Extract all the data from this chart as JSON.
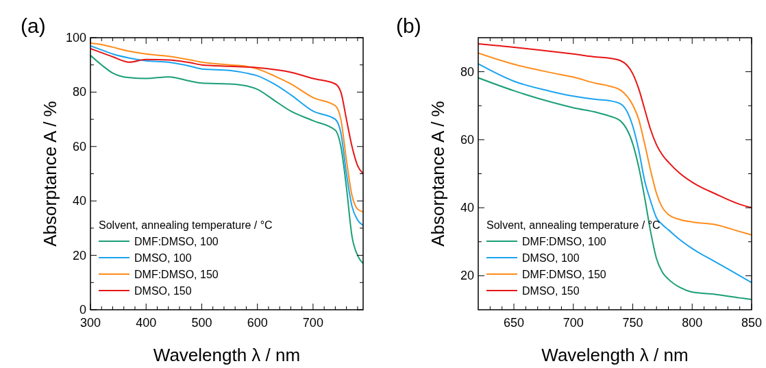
{
  "chart_data": [
    {
      "type": "line",
      "title": "(a)",
      "xlabel": "Wavelength λ / nm",
      "ylabel": "Absorptance A / %",
      "legend_title": "Solvent, annealing temperature / °C",
      "legend": "bottom left",
      "xlim": [
        300,
        790
      ],
      "ylim": [
        0,
        100
      ],
      "xticks": [
        300,
        {
          "value": 320,
          "label": null
        },
        {
          "value": 340,
          "label": null
        },
        {
          "value": 360,
          "label": null
        },
        {
          "value": 380,
          "label": null
        },
        400,
        {
          "value": 420,
          "label": null
        },
        {
          "value": 440,
          "label": null
        },
        {
          "value": 460,
          "label": null
        },
        {
          "value": 480,
          "label": null
        },
        500,
        {
          "value": 520,
          "label": null
        },
        {
          "value": 540,
          "label": null
        },
        {
          "value": 560,
          "label": null
        },
        {
          "value": 580,
          "label": null
        },
        600,
        {
          "value": 620,
          "label": null
        },
        {
          "value": 640,
          "label": null
        },
        {
          "value": 660,
          "label": null
        },
        {
          "value": 680,
          "label": null
        },
        700,
        {
          "value": 720,
          "label": null
        },
        {
          "value": 740,
          "label": null
        },
        {
          "value": 760,
          "label": null
        },
        {
          "value": 780,
          "label": null
        }
      ],
      "yticks": [
        0,
        {
          "value": 10,
          "label": null
        },
        20,
        {
          "value": 30,
          "label": null
        },
        40,
        {
          "value": 50,
          "label": null
        },
        60,
        {
          "value": 70,
          "label": null
        },
        80,
        {
          "value": 90,
          "label": null
        },
        100
      ],
      "x": [
        300,
        320,
        340,
        370,
        400,
        440,
        480,
        500,
        550,
        580,
        600,
        630,
        660,
        700,
        740,
        750,
        760,
        770,
        780,
        790
      ],
      "series": [
        {
          "name": "DMF:DMSO, 100",
          "color": "#1b9e77",
          "values": [
            93.5,
            90,
            87,
            85.3,
            85,
            85.6,
            84,
            83.3,
            83,
            82.3,
            81,
            77,
            73,
            69.5,
            66,
            60,
            45,
            27,
            20,
            17
          ]
        },
        {
          "name": "DMSO, 100",
          "color": "#1aa3f0",
          "values": [
            97,
            95.5,
            94,
            92.5,
            91.5,
            91,
            89.5,
            88.5,
            88,
            87,
            86,
            83,
            79,
            73,
            70,
            65,
            50,
            38,
            33,
            31
          ]
        },
        {
          "name": "DMF:DMSO, 150",
          "color": "#ff8c1a",
          "values": [
            98,
            97.5,
            96.5,
            95,
            94,
            93.2,
            91.8,
            91,
            90,
            89.5,
            88.5,
            86,
            83,
            78,
            75,
            70,
            55,
            42,
            37,
            36
          ]
        },
        {
          "name": "DMSO, 150",
          "color": "#e81414",
          "values": [
            96,
            94.5,
            93,
            91,
            92,
            91.8,
            90.8,
            90,
            89.5,
            89.2,
            89,
            88.3,
            87.3,
            85,
            83,
            80,
            70,
            60,
            53,
            50
          ]
        }
      ]
    },
    {
      "type": "line",
      "title": "(b)",
      "xlabel": "Wavelength λ / nm",
      "ylabel": "Absorptance A / %",
      "legend_title": "Solvent, annealing temperature / °C",
      "legend": "bottom left",
      "xlim": [
        620,
        850
      ],
      "ylim": [
        10,
        90
      ],
      "xticks": [
        {
          "value": 630,
          "label": null
        },
        {
          "value": 640,
          "label": null
        },
        650,
        {
          "value": 660,
          "label": null
        },
        {
          "value": 670,
          "label": null
        },
        {
          "value": 680,
          "label": null
        },
        {
          "value": 690,
          "label": null
        },
        700,
        {
          "value": 710,
          "label": null
        },
        {
          "value": 720,
          "label": null
        },
        {
          "value": 730,
          "label": null
        },
        {
          "value": 740,
          "label": null
        },
        750,
        {
          "value": 760,
          "label": null
        },
        {
          "value": 770,
          "label": null
        },
        {
          "value": 780,
          "label": null
        },
        {
          "value": 790,
          "label": null
        },
        800,
        {
          "value": 810,
          "label": null
        },
        {
          "value": 820,
          "label": null
        },
        {
          "value": 830,
          "label": null
        },
        {
          "value": 840,
          "label": null
        },
        850
      ],
      "yticks": [
        20,
        {
          "value": 30,
          "label": null
        },
        40,
        {
          "value": 50,
          "label": null
        },
        60,
        {
          "value": 70,
          "label": null
        },
        80
      ],
      "x": [
        620,
        650,
        680,
        700,
        720,
        730,
        740,
        750,
        755,
        760,
        765,
        770,
        775,
        780,
        790,
        800,
        820,
        840,
        850
      ],
      "series": [
        {
          "name": "DMF:DMSO, 100",
          "color": "#1b9e77",
          "values": [
            78.2,
            74.4,
            71.2,
            69.4,
            68,
            67,
            65.4,
            58.8,
            52,
            43,
            33,
            25,
            21,
            19,
            16.5,
            15.2,
            14.5,
            13.5,
            13
          ]
        },
        {
          "name": "DMSO, 100",
          "color": "#1aa3f0",
          "values": [
            82.3,
            77.2,
            74.3,
            72.8,
            71.8,
            71.5,
            70.5,
            64,
            57,
            48,
            42,
            37,
            35,
            33.5,
            30.5,
            28,
            24,
            20,
            18
          ]
        },
        {
          "name": "DMF:DMSO, 150",
          "color": "#ff8c1a",
          "values": [
            85.5,
            82.2,
            79.8,
            78.4,
            76.5,
            75.8,
            74.5,
            70.2,
            66,
            58.8,
            51,
            44.2,
            40,
            38,
            36.5,
            35.8,
            35,
            33,
            32
          ]
        },
        {
          "name": "DMSO, 150",
          "color": "#e81414",
          "values": [
            88.2,
            87.2,
            86,
            85.2,
            84.3,
            84,
            83.2,
            79.4,
            75,
            69,
            63,
            58.5,
            55.5,
            53.4,
            50,
            47.5,
            44,
            41,
            40
          ]
        }
      ]
    }
  ]
}
